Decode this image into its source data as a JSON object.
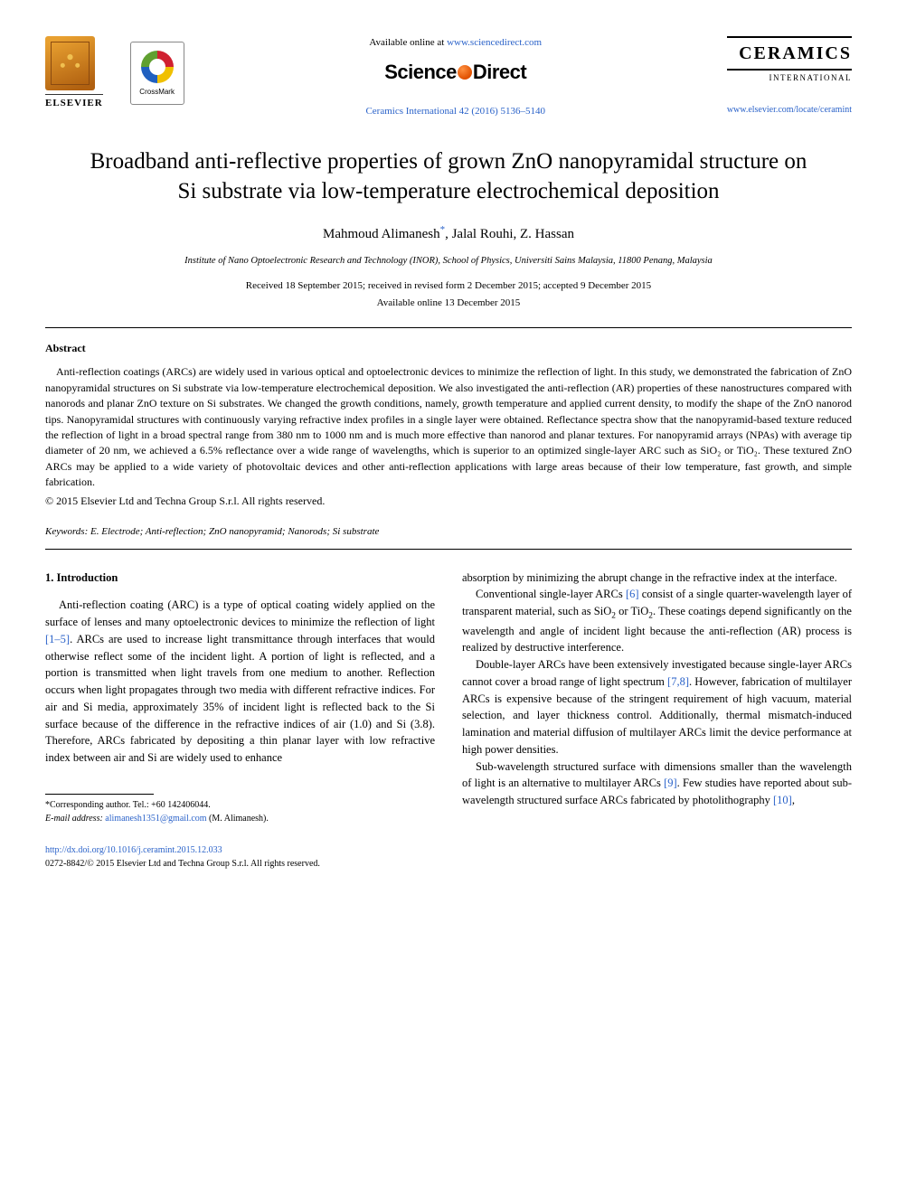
{
  "header": {
    "elsevier_name": "ELSEVIER",
    "crossmark_label": "CrossMark",
    "available_text": "Available online at ",
    "available_url": "www.sciencedirect.com",
    "sciencedirect": "ScienceDirect",
    "citation": "Ceramics International 42 (2016) 5136–5140",
    "journal_title": "CERAMICS",
    "journal_sub": "INTERNATIONAL",
    "journal_url": "www.elsevier.com/locate/ceramint"
  },
  "article": {
    "title": "Broadband anti-reflective properties of grown ZnO nanopyramidal structure on Si substrate via low-temperature electrochemical deposition",
    "author1": "Mahmoud Alimanesh",
    "corr_symbol": "*",
    "author2": ", Jalal Rouhi, Z. Hassan",
    "affiliation": "Institute of Nano Optoelectronic Research and Technology (INOR), School of Physics, Universiti Sains Malaysia, 11800 Penang, Malaysia",
    "dates": "Received 18 September 2015; received in revised form 2 December 2015; accepted 9 December 2015",
    "available_online": "Available online 13 December 2015"
  },
  "abstract": {
    "heading": "Abstract",
    "body": "Anti-reflection coatings (ARCs) are widely used in various optical and optoelectronic devices to minimize the reflection of light. In this study, we demonstrated the fabrication of ZnO nanopyramidal structures on Si substrate via low-temperature electrochemical deposition. We also investigated the anti-reflection (AR) properties of these nanostructures compared with nanorods and planar ZnO texture on Si substrates. We changed the growth conditions, namely, growth temperature and applied current density, to modify the shape of the ZnO nanorod tips. Nanopyramidal structures with continuously varying refractive index profiles in a single layer were obtained. Reflectance spectra show that the nanopyramid-based texture reduced the reflection of light in a broad spectral range from 380 nm to 1000 nm and is much more effective than nanorod and planar textures. For nanopyramid arrays (NPAs) with average tip diameter of 20 nm, we achieved a 6.5% reflectance over a wide range of wavelengths, which is superior to an optimized single-layer ARC such as SiO₂ or TiO₂. These textured ZnO ARCs may be applied to a wide variety of photovoltaic devices and other anti-reflection applications with large areas because of their low temperature, fast growth, and simple fabrication.",
    "copyright": "© 2015 Elsevier Ltd and Techna Group S.r.l. All rights reserved."
  },
  "keywords": {
    "label": "Keywords:",
    "list": " E. Electrode; Anti-reflection; ZnO nanopyramid; Nanorods; Si substrate"
  },
  "body": {
    "s1_heading": "1. Introduction",
    "p1_a": "Anti-reflection coating (ARC) is a type of optical coating widely applied on the surface of lenses and many optoelectronic devices to minimize the reflection of light ",
    "p1_ref1": "[1–5]",
    "p1_b": ". ARCs are used to increase light transmittance through interfaces that would otherwise reflect some of the incident light. A portion of light is reflected, and a portion is transmitted when light travels from one medium to another. Reflection occurs when light propagates through two media with different refractive indices. For air and Si media, approximately 35% of incident light is reflected back to the Si surface because of the difference in the refractive indices of air (1.0) and Si (3.8). Therefore, ARCs fabricated by depositing a thin planar layer with low refractive index between air and Si are widely used to enhance",
    "p1_c": "absorption by minimizing the abrupt change in the refractive index at the interface.",
    "p2_a": "Conventional single-layer ARCs ",
    "p2_ref": "[6]",
    "p2_b": " consist of a single quarter-wavelength layer of transparent material, such as SiO",
    "p2_c": " or TiO",
    "p2_d": ". These coatings depend significantly on the wavelength and angle of incident light because the anti-reflection (AR) process is realized by destructive interference.",
    "p3_a": "Double-layer ARCs have been extensively investigated because single-layer ARCs cannot cover a broad range of light spectrum ",
    "p3_ref": "[7,8]",
    "p3_b": ". However, fabrication of multilayer ARCs is expensive because of the stringent requirement of high vacuum, material selection, and layer thickness control. Additionally, thermal mismatch-induced lamination and material diffusion of multilayer ARCs limit the device performance at high power densities.",
    "p4_a": "Sub-wavelength structured surface with dimensions smaller than the wavelength of light is an alternative to multilayer ARCs ",
    "p4_ref1": "[9]",
    "p4_b": ". Few studies have reported about sub-wavelength structured surface ARCs fabricated by photolithography ",
    "p4_ref2": "[10]",
    "p4_c": ","
  },
  "footnote": {
    "corr_label": "*Corresponding author. Tel.: ",
    "corr_tel": "+60 142406044.",
    "email_label": "E-mail address:",
    "email": " alimanesh1351@gmail.com",
    "email_paren": " (M. Alimanesh)."
  },
  "doi": {
    "url": "http://dx.doi.org/10.1016/j.ceramint.2015.12.033",
    "issn_line": "0272-8842/© 2015 Elsevier Ltd and Techna Group S.r.l. All rights reserved."
  },
  "colors": {
    "link": "#2a62c9",
    "text": "#000000",
    "bg": "#ffffff"
  }
}
